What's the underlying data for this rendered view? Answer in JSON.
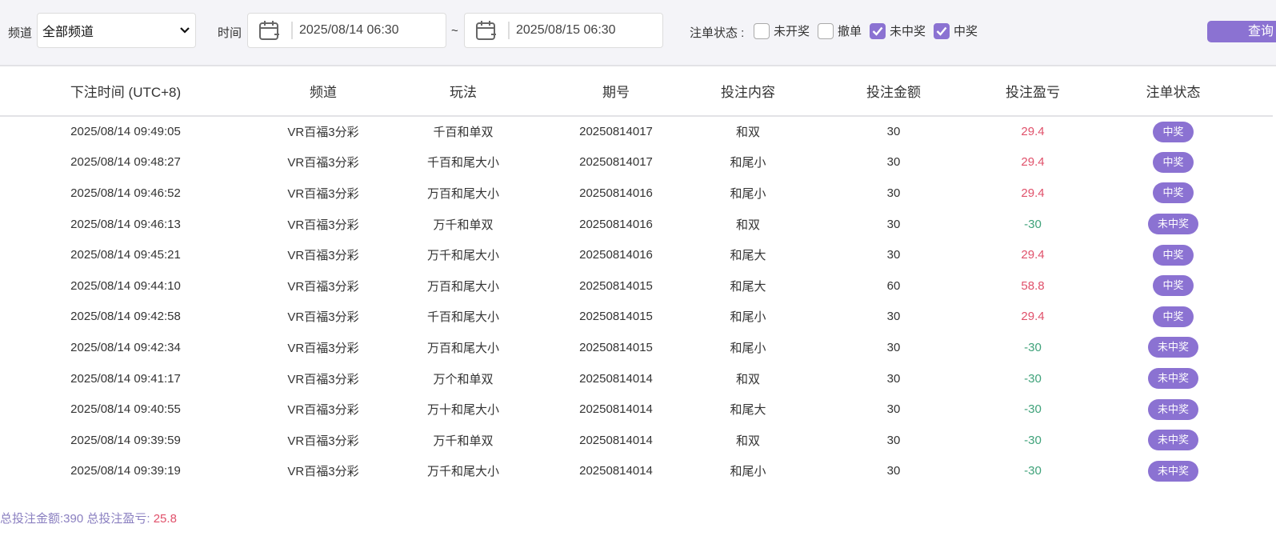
{
  "filters": {
    "channel_label": "频道",
    "channel_value": "全部频道",
    "time_label": "时间",
    "start": "2025/08/14 06:30",
    "separator": "~",
    "end": "2025/08/15 06:30",
    "status_label": "注单状态 :",
    "statuses": [
      {
        "label": "未开奖",
        "checked": false
      },
      {
        "label": "撤单",
        "checked": false
      },
      {
        "label": "未中奖",
        "checked": true
      },
      {
        "label": "中奖",
        "checked": true
      }
    ],
    "query_button": "查询"
  },
  "table": {
    "columns": [
      "下注时间 (UTC+8)",
      "频道",
      "玩法",
      "期号",
      "投注内容",
      "投注金额",
      "投注盈亏",
      "注单状态"
    ],
    "rows": [
      [
        "2025/08/14 09:49:05",
        "VR百福3分彩",
        "千百和单双",
        "20250814017",
        "和双",
        "30",
        "29.4",
        "中奖"
      ],
      [
        "2025/08/14 09:48:27",
        "VR百福3分彩",
        "千百和尾大小",
        "20250814017",
        "和尾小",
        "30",
        "29.4",
        "中奖"
      ],
      [
        "2025/08/14 09:46:52",
        "VR百福3分彩",
        "万百和尾大小",
        "20250814016",
        "和尾小",
        "30",
        "29.4",
        "中奖"
      ],
      [
        "2025/08/14 09:46:13",
        "VR百福3分彩",
        "万千和单双",
        "20250814016",
        "和双",
        "30",
        "-30",
        "未中奖"
      ],
      [
        "2025/08/14 09:45:21",
        "VR百福3分彩",
        "万千和尾大小",
        "20250814016",
        "和尾大",
        "30",
        "29.4",
        "中奖"
      ],
      [
        "2025/08/14 09:44:10",
        "VR百福3分彩",
        "万百和尾大小",
        "20250814015",
        "和尾大",
        "60",
        "58.8",
        "中奖"
      ],
      [
        "2025/08/14 09:42:58",
        "VR百福3分彩",
        "千百和尾大小",
        "20250814015",
        "和尾小",
        "30",
        "29.4",
        "中奖"
      ],
      [
        "2025/08/14 09:42:34",
        "VR百福3分彩",
        "万百和尾大小",
        "20250814015",
        "和尾小",
        "30",
        "-30",
        "未中奖"
      ],
      [
        "2025/08/14 09:41:17",
        "VR百福3分彩",
        "万个和单双",
        "20250814014",
        "和双",
        "30",
        "-30",
        "未中奖"
      ],
      [
        "2025/08/14 09:40:55",
        "VR百福3分彩",
        "万十和尾大小",
        "20250814014",
        "和尾大",
        "30",
        "-30",
        "未中奖"
      ],
      [
        "2025/08/14 09:39:59",
        "VR百福3分彩",
        "万千和单双",
        "20250814014",
        "和双",
        "30",
        "-30",
        "未中奖"
      ],
      [
        "2025/08/14 09:39:19",
        "VR百福3分彩",
        "万千和尾大小",
        "20250814014",
        "和尾小",
        "30",
        "-30",
        "未中奖"
      ]
    ]
  },
  "summary": {
    "total_bet_label": "总投注金额:",
    "total_bet": "390",
    "total_pl_label": "总投注盈亏:",
    "total_pl": "25.8"
  },
  "colors": {
    "accent": "#8b72d2",
    "profit": "#e0506a",
    "loss": "#3fa27a"
  }
}
